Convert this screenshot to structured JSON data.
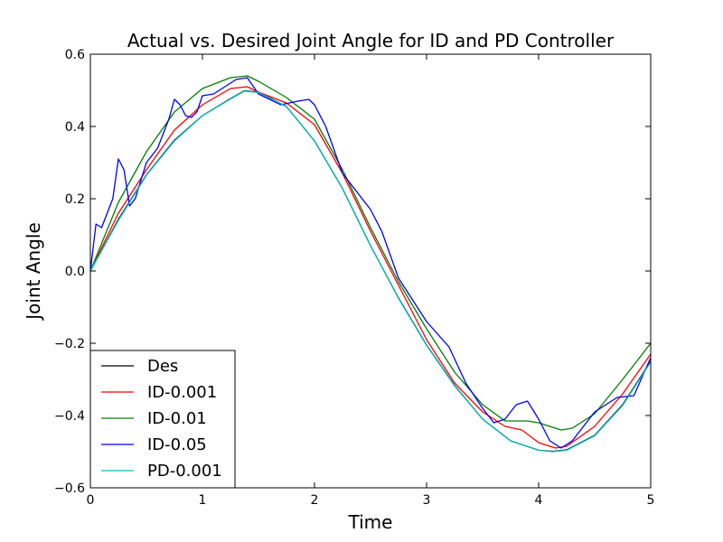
{
  "chart_data": {
    "type": "line",
    "title": "Actual vs. Desired Joint Angle for ID and PD Controller",
    "xlabel": "Time",
    "ylabel": "Joint Angle",
    "xlim": [
      0,
      5
    ],
    "ylim": [
      -0.6,
      0.6
    ],
    "xticks": [
      0,
      1,
      2,
      3,
      4,
      5
    ],
    "xtick_labels": [
      "0",
      "1",
      "2",
      "3",
      "4",
      "5"
    ],
    "yticks": [
      -0.6,
      -0.4,
      -0.2,
      0.0,
      0.2,
      0.4,
      0.6
    ],
    "ytick_labels": [
      "−0.6",
      "−0.4",
      "−0.2",
      "0.0",
      "0.2",
      "0.4",
      "0.6"
    ],
    "grid": false,
    "legend_position": "lower-left",
    "series": [
      {
        "name": "Des",
        "color": "#000000",
        "x": [
          0,
          0.25,
          0.5,
          0.75,
          1.0,
          1.25,
          1.375,
          1.5,
          1.75,
          2.0,
          2.25,
          2.5,
          2.75,
          3.0,
          3.25,
          3.5,
          3.75,
          4.0,
          4.125,
          4.25,
          4.5,
          4.75,
          5.0
        ],
        "y": [
          0.0,
          0.143,
          0.266,
          0.362,
          0.43,
          0.477,
          0.499,
          0.495,
          0.455,
          0.36,
          0.228,
          0.07,
          -0.075,
          -0.205,
          -0.317,
          -0.41,
          -0.47,
          -0.496,
          -0.499,
          -0.495,
          -0.455,
          -0.37,
          -0.25
        ]
      },
      {
        "name": "ID-0.001",
        "color": "#ff0000",
        "x": [
          0,
          0.25,
          0.5,
          0.75,
          1.0,
          1.25,
          1.4,
          1.5,
          1.75,
          2.0,
          2.25,
          2.5,
          2.75,
          3.0,
          3.25,
          3.5,
          3.7,
          3.85,
          4.0,
          4.15,
          4.25,
          4.5,
          4.75,
          5.0
        ],
        "y": [
          0.0,
          0.16,
          0.28,
          0.39,
          0.46,
          0.505,
          0.51,
          0.495,
          0.465,
          0.405,
          0.27,
          0.11,
          -0.04,
          -0.19,
          -0.31,
          -0.39,
          -0.43,
          -0.44,
          -0.475,
          -0.49,
          -0.485,
          -0.43,
          -0.34,
          -0.23
        ]
      },
      {
        "name": "ID-0.01",
        "color": "#008000",
        "x": [
          0,
          0.25,
          0.5,
          0.75,
          1.0,
          1.25,
          1.4,
          1.5,
          1.75,
          2.0,
          2.25,
          2.5,
          2.75,
          3.0,
          3.25,
          3.5,
          3.7,
          3.9,
          4.0,
          4.2,
          4.3,
          4.5,
          4.75,
          5.0
        ],
        "y": [
          0.0,
          0.19,
          0.33,
          0.44,
          0.505,
          0.535,
          0.54,
          0.525,
          0.48,
          0.42,
          0.28,
          0.12,
          -0.03,
          -0.16,
          -0.28,
          -0.37,
          -0.415,
          -0.415,
          -0.42,
          -0.44,
          -0.435,
          -0.395,
          -0.3,
          -0.2
        ]
      },
      {
        "name": "ID-0.05",
        "color": "#0000ff",
        "x": [
          0,
          0.05,
          0.1,
          0.2,
          0.25,
          0.3,
          0.35,
          0.4,
          0.5,
          0.6,
          0.7,
          0.75,
          0.8,
          0.85,
          0.9,
          0.95,
          1.0,
          1.1,
          1.2,
          1.3,
          1.4,
          1.5,
          1.7,
          1.85,
          1.95,
          2.0,
          2.1,
          2.25,
          2.5,
          2.6,
          2.75,
          3.0,
          3.2,
          3.35,
          3.5,
          3.6,
          3.7,
          3.8,
          3.9,
          4.0,
          4.1,
          4.2,
          4.3,
          4.5,
          4.7,
          4.85,
          5.0
        ],
        "y": [
          0.0,
          0.13,
          0.12,
          0.2,
          0.31,
          0.28,
          0.18,
          0.2,
          0.3,
          0.34,
          0.42,
          0.475,
          0.46,
          0.43,
          0.425,
          0.44,
          0.485,
          0.49,
          0.51,
          0.53,
          0.535,
          0.49,
          0.46,
          0.47,
          0.475,
          0.46,
          0.4,
          0.27,
          0.17,
          0.11,
          -0.02,
          -0.14,
          -0.21,
          -0.31,
          -0.38,
          -0.42,
          -0.41,
          -0.37,
          -0.36,
          -0.41,
          -0.47,
          -0.49,
          -0.47,
          -0.39,
          -0.35,
          -0.345,
          -0.24
        ]
      },
      {
        "name": "PD-0.001",
        "color": "#00bfbf",
        "x": [
          0,
          0.25,
          0.5,
          0.75,
          1.0,
          1.25,
          1.375,
          1.5,
          1.75,
          2.0,
          2.25,
          2.5,
          2.75,
          3.0,
          3.25,
          3.5,
          3.75,
          4.0,
          4.125,
          4.25,
          4.5,
          4.75,
          5.0
        ],
        "y": [
          0.0,
          0.14,
          0.265,
          0.36,
          0.43,
          0.476,
          0.498,
          0.494,
          0.455,
          0.36,
          0.228,
          0.07,
          -0.076,
          -0.206,
          -0.318,
          -0.41,
          -0.47,
          -0.496,
          -0.5,
          -0.496,
          -0.456,
          -0.372,
          -0.252
        ]
      }
    ]
  }
}
